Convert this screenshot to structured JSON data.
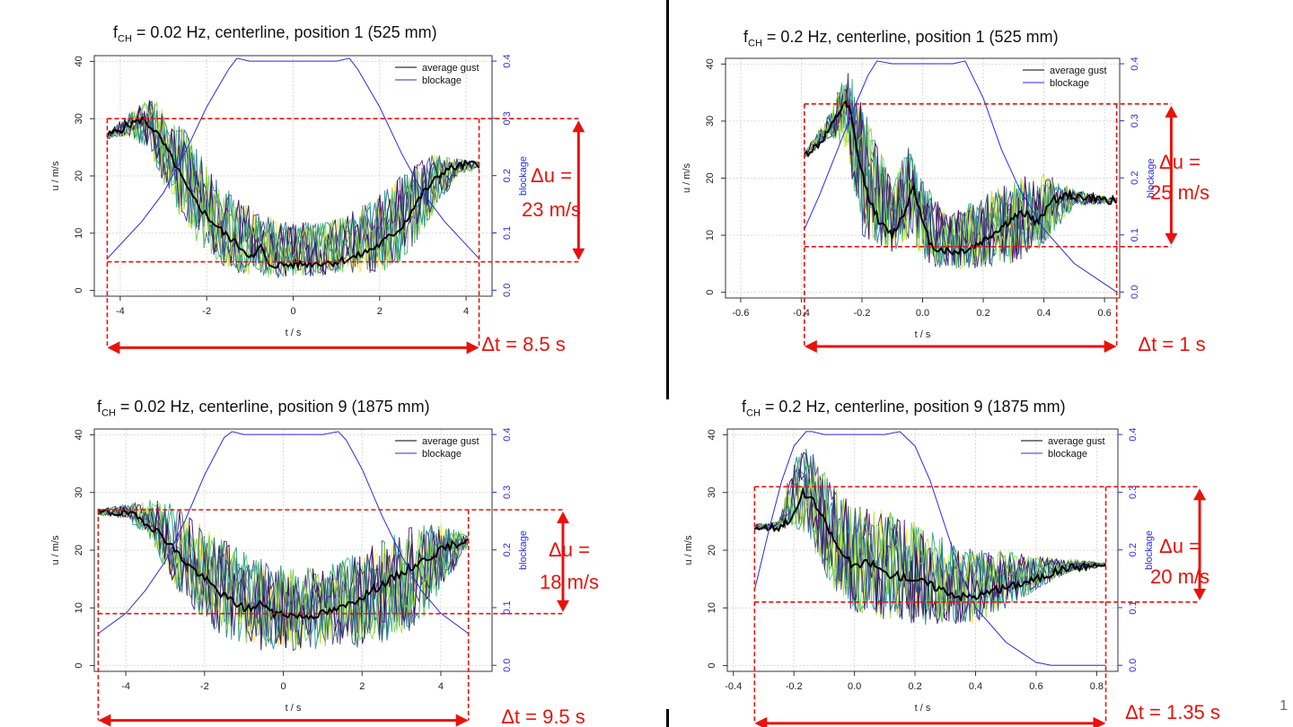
{
  "page_number": "1",
  "legend_labels": {
    "gust": "average gust",
    "blockage": "blockage"
  },
  "colors": {
    "annotation": "#e8120c",
    "blockage": "#2a2ae6",
    "average": "#000000",
    "grid": "#d9d9d9"
  },
  "chart_data": [
    {
      "type": "line",
      "title_prefix": "f",
      "title_sub": "CH",
      "title_rest": " = 0.02 Hz, centerline, position 1 (525 mm)",
      "xlabel": "t / s",
      "ylabel": "u / m/s",
      "y2label": "blockage",
      "xlim": [
        -4.6,
        4.6
      ],
      "ylim": [
        -1,
        41
      ],
      "y2lim": [
        -0.0105,
        0.4095
      ],
      "xticks": [
        -4,
        -2,
        0,
        2,
        4
      ],
      "xtick_labels": [
        "-4",
        "-2",
        "0",
        "2",
        "4"
      ],
      "yticks": [
        0,
        10,
        20,
        30,
        40
      ],
      "ytick_labels": [
        "0",
        "10",
        "20",
        "30",
        "40"
      ],
      "y2ticks": [
        0.0,
        0.1,
        0.2,
        0.3,
        0.4
      ],
      "y2tick_labels": [
        "0.0",
        "0.1",
        "0.2",
        "0.3",
        "0.4"
      ],
      "legend_position": "top-right",
      "legend_entries": [
        "average gust",
        "blockage"
      ],
      "series": [
        {
          "name": "average gust",
          "x": [
            -4.3,
            -3.9,
            -3.5,
            -3.2,
            -2.8,
            -2.4,
            -2.0,
            -1.6,
            -1.2,
            -0.9,
            -0.75,
            -0.6,
            -0.3,
            0.0,
            0.5,
            1.0,
            1.5,
            2.0,
            2.5,
            3.0,
            3.5,
            4.0,
            4.3
          ],
          "y": [
            27,
            28.5,
            30,
            28,
            23,
            17,
            13,
            10,
            7.5,
            5.5,
            8,
            4.5,
            4.5,
            4.5,
            4.8,
            5,
            6,
            8,
            11,
            17,
            21,
            22,
            22
          ]
        },
        {
          "name": "blockage",
          "x": [
            -4.3,
            -3.5,
            -3.0,
            -2.5,
            -2.0,
            -1.5,
            -1.3,
            -1.0,
            0.0,
            1.0,
            1.3,
            1.5,
            2.0,
            2.5,
            3.0,
            3.5,
            4.3
          ],
          "y": [
            0.055,
            0.12,
            0.17,
            0.24,
            0.32,
            0.385,
            0.405,
            0.4,
            0.4,
            0.4,
            0.405,
            0.385,
            0.32,
            0.24,
            0.17,
            0.12,
            0.055
          ]
        }
      ],
      "spread": {
        "x": [
          -4.3,
          -3.8,
          -3.3,
          -2.8,
          -2.3,
          -1.8,
          -1.3,
          -0.8,
          -0.3,
          0.2,
          0.8,
          1.4,
          2.0,
          2.6,
          3.2,
          3.8,
          4.3
        ],
        "low": [
          26.5,
          27,
          24,
          15,
          9,
          5,
          3,
          2.5,
          2,
          2.5,
          2.5,
          3,
          3,
          5,
          13,
          20,
          21.5
        ],
        "high": [
          27.5,
          31,
          34,
          31,
          26,
          20,
          16,
          14,
          12,
          12,
          12,
          14,
          17,
          21,
          24,
          23,
          22.5
        ]
      },
      "annotations": {
        "du": "Δu =",
        "du_value": "23 m/s",
        "dt": "Δt = 8.5 s"
      },
      "annotation_geom": {
        "box_x": [
          -4.3,
          4.3
        ],
        "box_y": [
          5,
          30
        ],
        "line_x2": 7.4,
        "du_arrow_x": 6.6,
        "dt_arrow_y": -10
      }
    },
    {
      "type": "line",
      "title_prefix": "f",
      "title_sub": "CH",
      "title_rest": " = 0.2 Hz, centerline, position 1 (525 mm)",
      "xlabel": "t / s",
      "ylabel": "u / m/s",
      "y2label": "blockage",
      "xlim": [
        -0.65,
        0.65
      ],
      "ylim": [
        -1,
        41
      ],
      "y2lim": [
        -0.0105,
        0.4095
      ],
      "xticks": [
        -0.6,
        -0.4,
        -0.2,
        0.0,
        0.2,
        0.4,
        0.6
      ],
      "xtick_labels": [
        "-0.6",
        "-0.4",
        "-0.2",
        "0.0",
        "0.2",
        "0.4",
        "0.6"
      ],
      "yticks": [
        0,
        10,
        20,
        30,
        40
      ],
      "ytick_labels": [
        "0",
        "10",
        "20",
        "30",
        "40"
      ],
      "y2ticks": [
        0.0,
        0.1,
        0.2,
        0.3,
        0.4
      ],
      "y2tick_labels": [
        "0.0",
        "0.1",
        "0.2",
        "0.3",
        "0.4"
      ],
      "legend_position": "top-right",
      "legend_entries": [
        "average gust",
        "blockage"
      ],
      "series": [
        {
          "name": "average gust",
          "x": [
            -0.39,
            -0.34,
            -0.3,
            -0.26,
            -0.24,
            -0.21,
            -0.18,
            -0.14,
            -0.1,
            -0.06,
            -0.03,
            0.0,
            0.03,
            0.06,
            0.1,
            0.15,
            0.2,
            0.25,
            0.3,
            0.34,
            0.38,
            0.42,
            0.48,
            0.55,
            0.64
          ],
          "y": [
            24,
            26,
            29,
            33,
            32,
            23,
            17,
            12,
            10,
            14,
            19,
            12,
            8,
            7.5,
            7,
            7.5,
            9,
            11,
            13,
            14,
            12,
            16,
            17,
            16.5,
            16
          ]
        },
        {
          "name": "blockage",
          "x": [
            -0.39,
            -0.34,
            -0.28,
            -0.22,
            -0.18,
            -0.15,
            -0.1,
            0.0,
            0.1,
            0.14,
            0.2,
            0.26,
            0.32,
            0.4,
            0.5,
            0.64
          ],
          "y": [
            0.11,
            0.17,
            0.25,
            0.33,
            0.38,
            0.405,
            0.4,
            0.4,
            0.4,
            0.405,
            0.34,
            0.25,
            0.18,
            0.11,
            0.05,
            0.0
          ]
        }
      ],
      "spread": {
        "x": [
          -0.39,
          -0.3,
          -0.25,
          -0.2,
          -0.15,
          -0.1,
          -0.05,
          0.0,
          0.05,
          0.1,
          0.2,
          0.3,
          0.4,
          0.5,
          0.64
        ],
        "low": [
          23.5,
          27,
          25,
          10,
          8,
          7,
          9,
          6,
          4,
          4,
          4,
          5,
          8,
          15,
          15.8
        ],
        "high": [
          24.5,
          32,
          40,
          33,
          26,
          20,
          26,
          20,
          16,
          14,
          17,
          20,
          21,
          18,
          16.4
        ]
      },
      "annotations": {
        "du": "Δu =",
        "du_value": "25 m/s",
        "dt": "Δt = 1 s"
      },
      "annotation_geom": {
        "box_x": [
          -0.39,
          0.64
        ],
        "box_y": [
          8,
          33
        ],
        "line_x2": 0.82,
        "du_arrow_x": 0.82,
        "dt_arrow_y": -9.5
      }
    },
    {
      "type": "line",
      "title_prefix": "f",
      "title_sub": "CH",
      "title_rest": " = 0.02 Hz, centerline, position 9 (1875 mm)",
      "xlabel": "t / s",
      "ylabel": "u / m/s",
      "y2label": "blockage",
      "xlim": [
        -4.8,
        5.3
      ],
      "ylim": [
        -1,
        41
      ],
      "y2lim": [
        -0.0105,
        0.4095
      ],
      "xticks": [
        -4,
        -2,
        0,
        2,
        4
      ],
      "xtick_labels": [
        "-4",
        "-2",
        "0",
        "2",
        "4"
      ],
      "yticks": [
        0,
        10,
        20,
        30,
        40
      ],
      "ytick_labels": [
        "0",
        "10",
        "20",
        "30",
        "40"
      ],
      "y2ticks": [
        0.0,
        0.1,
        0.2,
        0.3,
        0.4
      ],
      "y2tick_labels": [
        "0.0",
        "0.1",
        "0.2",
        "0.3",
        "0.4"
      ],
      "legend_position": "top-right",
      "legend_entries": [
        "average gust",
        "blockage"
      ],
      "series": [
        {
          "name": "average gust",
          "x": [
            -4.7,
            -4.0,
            -3.5,
            -3.0,
            -2.5,
            -2.0,
            -1.5,
            -1.0,
            -0.7,
            -0.5,
            -0.3,
            0.0,
            0.5,
            1.0,
            1.5,
            2.0,
            2.5,
            3.0,
            3.5,
            4.0,
            4.7
          ],
          "y": [
            26.5,
            26.5,
            25,
            22,
            18,
            15,
            12,
            10,
            10,
            11,
            9,
            9,
            8.5,
            9,
            10,
            12,
            14,
            16,
            18,
            20,
            22
          ]
        },
        {
          "name": "blockage",
          "x": [
            -4.7,
            -4.0,
            -3.5,
            -3.0,
            -2.5,
            -2.0,
            -1.5,
            -1.3,
            -1.0,
            0.0,
            1.0,
            1.4,
            1.6,
            2.0,
            2.5,
            3.0,
            3.5,
            4.0,
            4.7
          ],
          "y": [
            0.055,
            0.09,
            0.13,
            0.18,
            0.25,
            0.33,
            0.395,
            0.405,
            0.4,
            0.4,
            0.4,
            0.405,
            0.39,
            0.34,
            0.26,
            0.19,
            0.13,
            0.09,
            0.055
          ]
        }
      ],
      "spread": {
        "x": [
          -4.7,
          -4.0,
          -3.4,
          -2.8,
          -2.2,
          -1.6,
          -1.0,
          -0.4,
          0.2,
          0.8,
          1.4,
          2.0,
          2.6,
          3.2,
          3.8,
          4.3,
          4.7
        ],
        "low": [
          26,
          25.5,
          22,
          14,
          9,
          5,
          3,
          2.5,
          2.5,
          2.5,
          3,
          3,
          4,
          6,
          10,
          16,
          21
        ],
        "high": [
          27,
          28,
          29,
          28,
          25,
          22,
          20,
          18,
          17,
          17,
          18,
          20,
          22,
          24,
          25,
          24,
          22.5
        ]
      },
      "annotations": {
        "du": "Δu =",
        "du_value": "18 m/s",
        "dt": "Δt = 9.5 s"
      },
      "annotation_geom": {
        "box_x": [
          -4.7,
          4.7
        ],
        "box_y": [
          9,
          27
        ],
        "line_x2": 7.1,
        "du_arrow_x": 7.1,
        "dt_arrow_y": -9.5
      }
    },
    {
      "type": "line",
      "title_prefix": "f",
      "title_sub": "CH",
      "title_rest": " = 0.2 Hz, centerline, position 9 (1875 mm)",
      "xlabel": "t / s",
      "ylabel": "u / m/s",
      "y2label": "blockage",
      "xlim": [
        -0.42,
        0.87
      ],
      "ylim": [
        -1,
        41
      ],
      "y2lim": [
        -0.0105,
        0.4095
      ],
      "xticks": [
        -0.4,
        -0.2,
        0.0,
        0.2,
        0.4,
        0.6,
        0.8
      ],
      "xtick_labels": [
        "-0.4",
        "-0.2",
        "0.0",
        "0.2",
        "0.4",
        "0.6",
        "0.8"
      ],
      "yticks": [
        0,
        10,
        20,
        30,
        40
      ],
      "ytick_labels": [
        "0",
        "10",
        "20",
        "30",
        "40"
      ],
      "y2ticks": [
        0.0,
        0.1,
        0.2,
        0.3,
        0.4
      ],
      "y2tick_labels": [
        "0.0",
        "0.1",
        "0.2",
        "0.3",
        "0.4"
      ],
      "legend_position": "top-right",
      "legend_entries": [
        "average gust",
        "blockage"
      ],
      "series": [
        {
          "name": "average gust",
          "x": [
            -0.33,
            -0.25,
            -0.2,
            -0.17,
            -0.13,
            -0.1,
            -0.05,
            0.0,
            0.05,
            0.1,
            0.15,
            0.2,
            0.25,
            0.3,
            0.35,
            0.4,
            0.5,
            0.6,
            0.7,
            0.83
          ],
          "y": [
            24,
            24,
            26,
            30,
            28,
            25,
            20,
            17,
            18,
            16,
            15.5,
            15,
            14,
            13,
            12,
            12,
            13.5,
            15,
            17,
            17.5
          ]
        },
        {
          "name": "blockage",
          "x": [
            -0.33,
            -0.28,
            -0.24,
            -0.2,
            -0.16,
            -0.14,
            -0.1,
            0.0,
            0.1,
            0.15,
            0.2,
            0.25,
            0.3,
            0.35,
            0.4,
            0.5,
            0.6,
            0.65,
            0.83
          ],
          "y": [
            0.13,
            0.24,
            0.32,
            0.38,
            0.405,
            0.405,
            0.4,
            0.4,
            0.4,
            0.405,
            0.38,
            0.32,
            0.24,
            0.16,
            0.1,
            0.04,
            0.005,
            0.0,
            0.0
          ]
        }
      ],
      "spread": {
        "x": [
          -0.33,
          -0.25,
          -0.2,
          -0.15,
          -0.1,
          -0.05,
          0.0,
          0.1,
          0.2,
          0.3,
          0.4,
          0.5,
          0.6,
          0.7,
          0.83
        ],
        "low": [
          23.5,
          23.5,
          24,
          22,
          15,
          12,
          9,
          8,
          7,
          7,
          7,
          10,
          13,
          16,
          17.2
        ],
        "high": [
          24.5,
          25,
          37,
          38,
          34,
          30,
          28,
          27,
          25,
          22,
          20,
          20,
          19,
          18.5,
          17.8
        ]
      },
      "annotations": {
        "du": "Δu =",
        "du_value": "20 m/s",
        "dt": "Δt = 1.35 s"
      },
      "annotation_geom": {
        "box_x": [
          -0.33,
          0.83
        ],
        "box_y": [
          11,
          31
        ],
        "line_x2": 1.14,
        "du_arrow_x": 1.14,
        "dt_arrow_y": -10
      }
    }
  ]
}
